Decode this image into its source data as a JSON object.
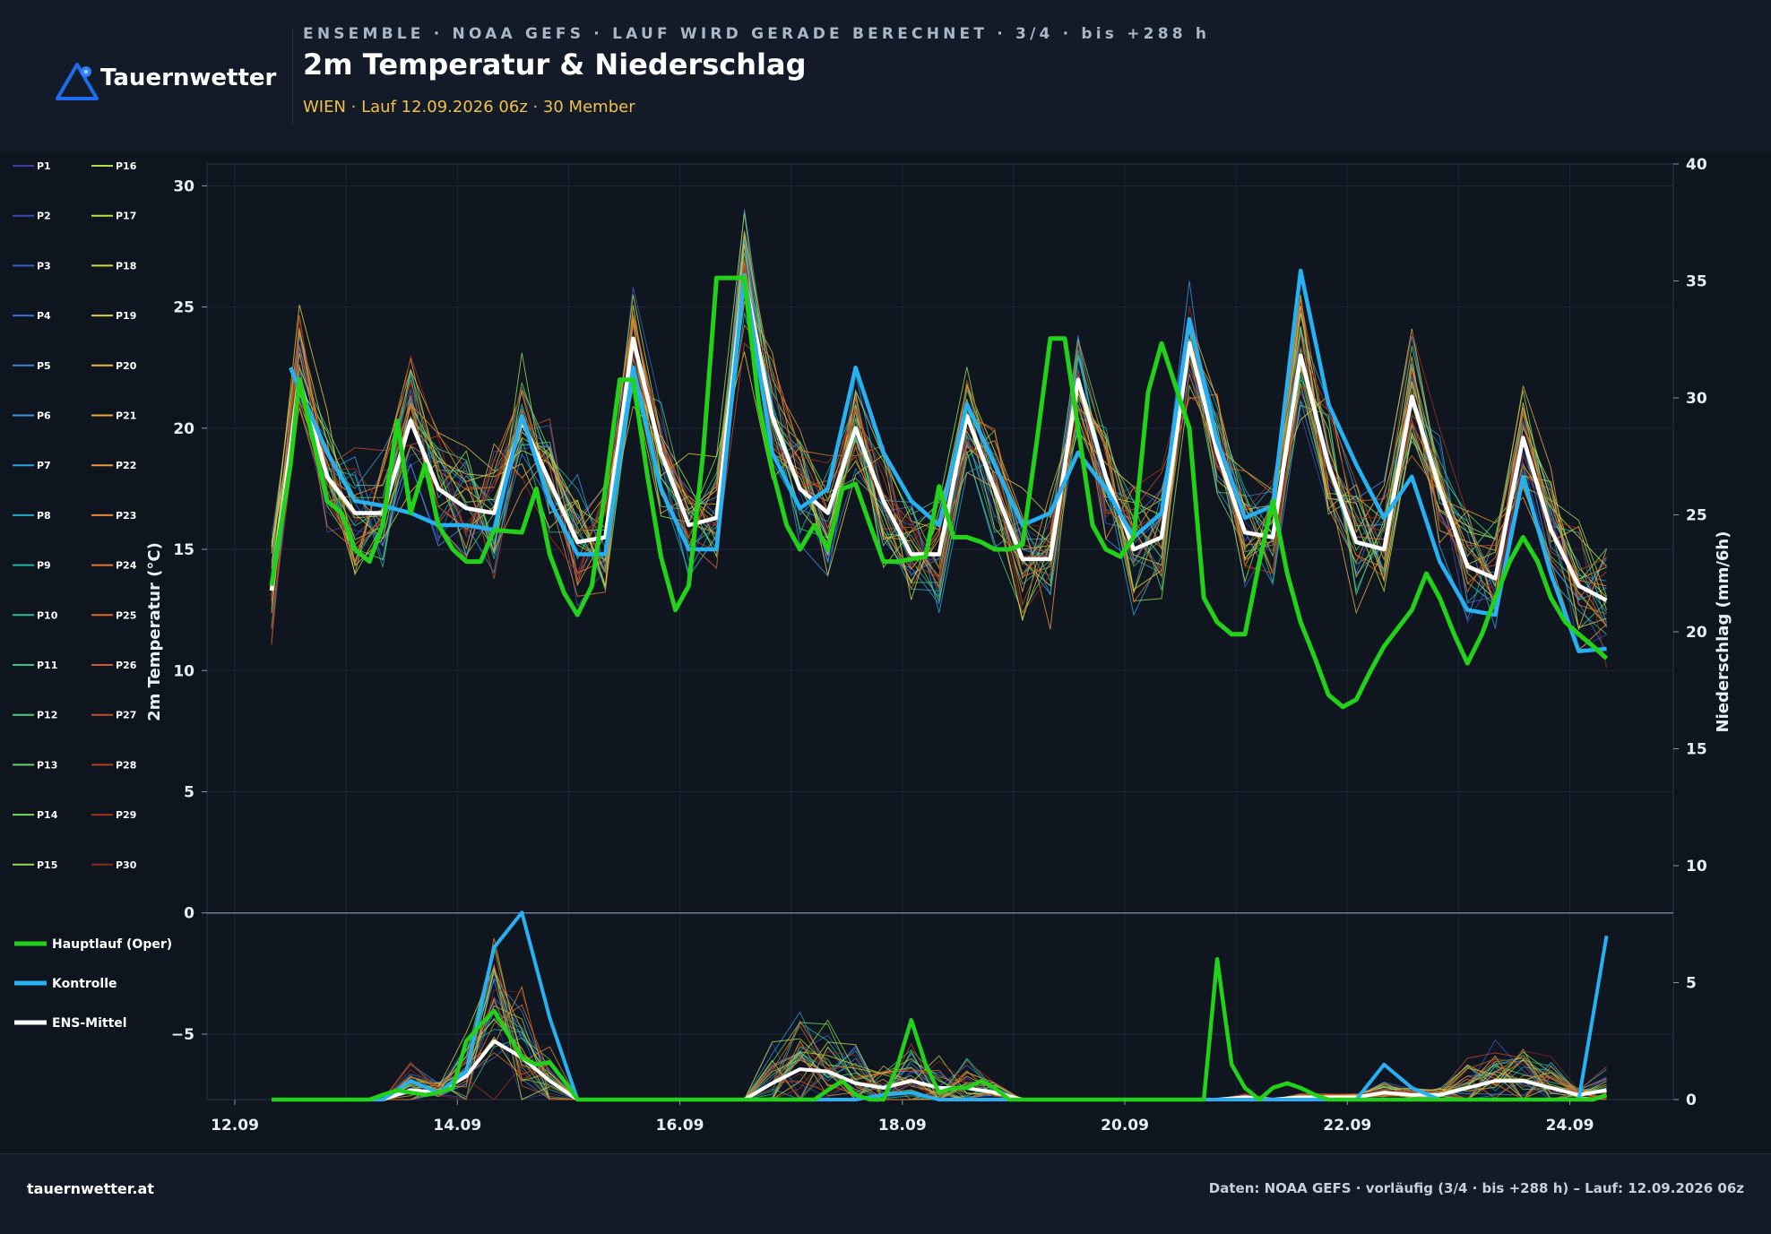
{
  "header": {
    "brand": "Tauernwetter",
    "kicker": "ENSEMBLE · NOAA GEFS · LAUF WIRD GERADE BERECHNET · 3/4 · bis +288 h",
    "title": "2m Temperatur & Niederschlag",
    "subtitle": "WIEN · Lauf 12.09.2026 06z · 30 Member"
  },
  "footer": {
    "site": "tauernwetter.at",
    "credit": "Daten: NOAA GEFS · vorläufig (3/4 · bis +288 h) – Lauf: 12.09.2026 06z"
  },
  "colors": {
    "oper": "#22d21a",
    "control": "#27b1f2",
    "mean": "#ffffff",
    "background": "#0e151f",
    "header": "#121b27"
  },
  "chart_data": {
    "type": "line",
    "xlabel": "",
    "ylabel": "2m Temperatur (°C)",
    "y2label": "Niederschlag (mm/6h)",
    "ylim": [
      -7.7,
      30.9
    ],
    "y2lim": [
      0,
      40
    ],
    "xlim_days": [
      11.75,
      24.93
    ],
    "x_ticks": [
      "12.09",
      "14.09",
      "16.09",
      "18.09",
      "20.09",
      "22.09",
      "24.09"
    ],
    "x_tick_days": [
      12,
      14,
      16,
      18,
      20,
      22,
      24
    ],
    "y_ticks": [
      -5,
      0,
      5,
      10,
      15,
      20,
      25,
      30
    ],
    "y2_ticks": [
      0,
      5,
      10,
      15,
      20,
      25,
      30,
      35,
      40
    ],
    "grid": true,
    "legend_main": [
      "Hauptlauf (Oper)",
      "Kontrolle",
      "ENS-Mittel"
    ],
    "members": [
      "P1",
      "P2",
      "P3",
      "P4",
      "P5",
      "P6",
      "P7",
      "P8",
      "P9",
      "P10",
      "P11",
      "P12",
      "P13",
      "P14",
      "P15",
      "P16",
      "P17",
      "P18",
      "P19",
      "P20",
      "P21",
      "P22",
      "P23",
      "P24",
      "P25",
      "P26",
      "P27",
      "P28",
      "P29",
      "P30"
    ],
    "member_colors": [
      "#3b3f9a",
      "#3f4ab0",
      "#3d5cc4",
      "#3a6fd2",
      "#3e82dc",
      "#3f92e2",
      "#2fa0dc",
      "#24a8c2",
      "#22b4a8",
      "#26be94",
      "#33c68a",
      "#4ccc7c",
      "#62d270",
      "#7ad85e",
      "#96dc52",
      "#aee04a",
      "#c2de46",
      "#d0d844",
      "#dccd42",
      "#e4bc44",
      "#e8aa42",
      "#e89a3c",
      "#e88a36",
      "#e47a30",
      "#dc6a2c",
      "#d05a28",
      "#c44c24",
      "#b43e20",
      "#a2321c",
      "#8e281a"
    ],
    "series": [
      {
        "name": "Hauptlauf (Oper)",
        "x": [
          12.33,
          12.5,
          12.58,
          12.83,
          12.96,
          13.08,
          13.21,
          13.33,
          13.46,
          13.58,
          13.71,
          13.83,
          13.96,
          14.08,
          14.21,
          14.33,
          14.58,
          14.71,
          14.83,
          14.96,
          15.08,
          15.21,
          15.33,
          15.46,
          15.58,
          15.71,
          15.83,
          15.96,
          16.08,
          16.21,
          16.33,
          16.58,
          16.71,
          16.83,
          16.96,
          17.08,
          17.21,
          17.33,
          17.46,
          17.58,
          17.71,
          17.83,
          17.96,
          18.08,
          18.21,
          18.33,
          18.46,
          18.58,
          18.71,
          18.83,
          18.96,
          19.08,
          19.21,
          19.33,
          19.46,
          19.58,
          19.71,
          19.83,
          19.96,
          20.08,
          20.21,
          20.33,
          20.58,
          20.71,
          20.83,
          20.96,
          21.08,
          21.21,
          21.33,
          21.46,
          21.58,
          21.71,
          21.83,
          21.96,
          22.08,
          22.21,
          22.33,
          22.58,
          22.71,
          22.83,
          22.96,
          23.08,
          23.21,
          23.33,
          23.46,
          23.58,
          23.71,
          23.83,
          23.96,
          24.08,
          24.21,
          24.33
        ],
        "temp": [
          13.5,
          18.5,
          22.0,
          17.0,
          16.5,
          15.0,
          14.5,
          16.0,
          20.3,
          16.5,
          18.5,
          16.0,
          15.0,
          14.5,
          14.5,
          15.8,
          15.7,
          17.5,
          14.8,
          13.2,
          12.3,
          13.5,
          17.5,
          22.0,
          22.0,
          18.0,
          14.7,
          12.5,
          13.5,
          19.0,
          26.2,
          26.2,
          21.0,
          18.3,
          16.0,
          15.0,
          16.0,
          15.0,
          17.5,
          17.7,
          16.0,
          14.5,
          14.5,
          14.6,
          14.7,
          17.6,
          15.5,
          15.5,
          15.3,
          15.0,
          15.0,
          15.2,
          19.5,
          23.7,
          23.7,
          20.0,
          16.0,
          15.0,
          14.7,
          15.5,
          21.5,
          23.5,
          20.0,
          13.0,
          12.0,
          11.5,
          11.5,
          14.5,
          17.0,
          14.0,
          12.0,
          10.5,
          9.0,
          8.5,
          8.8,
          10.0,
          11.0,
          12.5,
          14.0,
          13.0,
          11.5,
          10.3,
          11.5,
          13.0,
          14.5,
          15.5,
          14.5,
          13.0,
          12.0,
          11.5,
          11.0,
          10.5
        ],
        "precip": [
          0,
          0,
          0,
          0,
          0,
          0,
          0,
          0.2,
          0.4,
          0.3,
          0.2,
          0.3,
          0.5,
          2.5,
          3.2,
          3.8,
          1.8,
          1.5,
          1.6,
          0.8,
          0,
          0,
          0,
          0,
          0,
          0,
          0,
          0,
          0,
          0,
          0,
          0,
          0,
          0,
          0,
          0,
          0,
          0.4,
          0.8,
          0.2,
          0,
          0,
          1.5,
          3.4,
          1.5,
          0.3,
          0.5,
          0.5,
          0.8,
          0.5,
          0,
          0,
          0,
          0,
          0,
          0,
          0,
          0,
          0,
          0,
          0,
          0,
          0,
          0,
          6.0,
          1.5,
          0.5,
          0,
          0.5,
          0.7,
          0.5,
          0.2,
          0,
          0,
          0,
          0,
          0,
          0,
          0,
          0,
          0,
          0,
          0,
          0,
          0,
          0,
          0,
          0,
          0,
          0,
          0,
          0.2
        ]
      },
      {
        "name": "Kontrolle",
        "x": [
          12.5,
          12.83,
          13.08,
          13.33,
          13.58,
          13.83,
          14.08,
          14.33,
          14.58,
          14.83,
          15.08,
          15.33,
          15.58,
          15.83,
          16.08,
          16.33,
          16.58,
          16.83,
          17.08,
          17.33,
          17.58,
          17.83,
          18.08,
          18.33,
          18.58,
          18.83,
          19.08,
          19.33,
          19.58,
          19.83,
          20.08,
          20.33,
          20.58,
          20.83,
          21.08,
          21.33,
          21.58,
          21.83,
          22.08,
          22.33,
          22.58,
          22.83,
          23.08,
          23.33,
          23.58,
          23.83,
          24.08,
          24.33
        ],
        "temp": [
          22.5,
          19.0,
          17.0,
          16.8,
          16.5,
          16.0,
          16.0,
          15.8,
          20.5,
          17.0,
          14.8,
          14.8,
          22.5,
          17.5,
          15.0,
          15.0,
          26.3,
          19.0,
          16.7,
          17.5,
          22.5,
          19.0,
          17.0,
          16.0,
          21.0,
          18.5,
          16.0,
          16.5,
          19.0,
          17.5,
          15.5,
          16.5,
          24.5,
          19.5,
          16.3,
          16.8,
          26.5,
          21.0,
          18.5,
          16.3,
          18.0,
          14.5,
          12.5,
          12.3,
          18.0,
          14.0,
          10.8,
          10.9
        ],
        "precip": [
          0,
          0,
          0,
          0,
          0.8,
          0.3,
          1.2,
          6.5,
          8.0,
          3.5,
          0,
          0,
          0,
          0,
          0,
          0,
          0,
          0,
          0,
          0,
          0,
          0.2,
          0.3,
          0,
          0,
          0,
          0,
          0,
          0,
          0,
          0,
          0,
          0,
          0,
          0,
          0,
          0,
          0,
          0,
          1.5,
          0.5,
          0,
          0,
          0,
          0,
          0,
          0,
          7.0
        ]
      },
      {
        "name": "ENS-Mittel",
        "x": [
          12.33,
          12.58,
          12.83,
          13.08,
          13.33,
          13.58,
          13.83,
          14.08,
          14.33,
          14.58,
          14.83,
          15.08,
          15.33,
          15.58,
          15.83,
          16.08,
          16.33,
          16.58,
          16.83,
          17.08,
          17.33,
          17.58,
          17.83,
          18.08,
          18.33,
          18.58,
          18.83,
          19.08,
          19.33,
          19.58,
          19.83,
          20.08,
          20.33,
          20.58,
          20.83,
          21.08,
          21.33,
          21.58,
          21.83,
          22.08,
          22.33,
          22.58,
          22.83,
          23.08,
          23.33,
          23.58,
          23.83,
          24.08,
          24.33
        ],
        "temp": [
          13.3,
          22.0,
          18.0,
          16.5,
          16.5,
          20.3,
          17.5,
          16.7,
          16.5,
          20.3,
          17.8,
          15.3,
          15.5,
          23.7,
          19.0,
          16.0,
          16.3,
          26.2,
          20.5,
          17.5,
          16.5,
          20.0,
          17.0,
          14.8,
          14.8,
          20.5,
          17.5,
          14.6,
          14.6,
          22.0,
          18.0,
          15.0,
          15.5,
          23.5,
          19.0,
          15.7,
          15.5,
          23.0,
          18.5,
          15.3,
          15.0,
          21.3,
          17.5,
          14.3,
          13.8,
          19.6,
          15.8,
          13.5,
          12.9
        ],
        "precip": [
          0,
          0,
          0,
          0,
          0,
          0.4,
          0.3,
          1.0,
          2.5,
          1.8,
          0.8,
          0,
          0,
          0,
          0,
          0,
          0,
          0,
          0.7,
          1.3,
          1.2,
          0.7,
          0.5,
          0.8,
          0.5,
          0.5,
          0.3,
          0,
          0,
          0,
          0,
          0,
          0,
          0,
          0,
          0.1,
          0,
          0.1,
          0.1,
          0.1,
          0.3,
          0.2,
          0.2,
          0.5,
          0.8,
          0.8,
          0.5,
          0.2,
          0.4
        ]
      }
    ]
  }
}
